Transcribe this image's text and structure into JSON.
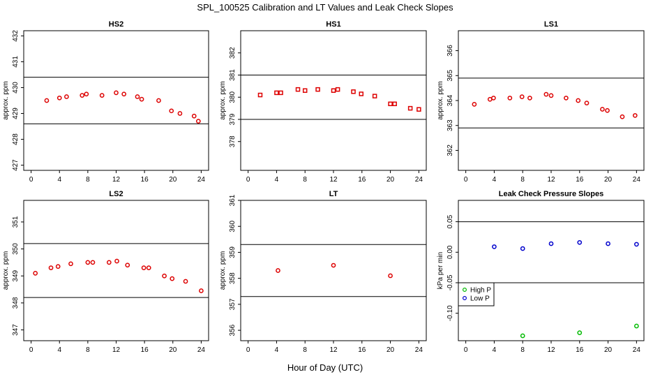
{
  "figure": {
    "title": "SPL_100525  Calibration and LT Values and Leak Check Slopes",
    "xlabel": "Hour of Day (UTC)"
  },
  "chart_data": [
    {
      "type": "scatter",
      "title": "HS2",
      "ylabel": "approx. ppm",
      "xlim": [
        0,
        24
      ],
      "ylim": [
        426.8,
        432.2
      ],
      "xticks": [
        0,
        4,
        8,
        12,
        16,
        20,
        24
      ],
      "yticks": [
        427,
        428,
        429,
        430,
        431,
        432
      ],
      "hlines": [
        430.4,
        428.6
      ],
      "color": "#dd0000",
      "marker": "circle",
      "series": [
        {
          "points": [
            [
              2.2,
              429.5
            ],
            [
              4.0,
              429.6
            ],
            [
              5.0,
              429.65
            ],
            [
              7.2,
              429.7
            ],
            [
              7.8,
              429.75
            ],
            [
              10.0,
              429.7
            ],
            [
              12.0,
              429.8
            ],
            [
              13.1,
              429.75
            ],
            [
              15.0,
              429.65
            ],
            [
              15.6,
              429.55
            ],
            [
              18.0,
              429.5
            ],
            [
              19.8,
              429.1
            ],
            [
              21.0,
              429.0
            ],
            [
              23.0,
              428.9
            ],
            [
              23.6,
              428.7
            ]
          ]
        }
      ]
    },
    {
      "type": "scatter",
      "title": "HS1",
      "ylabel": "approx. ppm",
      "xlim": [
        0,
        24
      ],
      "ylim": [
        376.7,
        383.0
      ],
      "xticks": [
        0,
        4,
        8,
        12,
        16,
        20,
        24
      ],
      "yticks": [
        378,
        379,
        380,
        381,
        382
      ],
      "hlines": [
        381.0,
        379.0
      ],
      "color": "#dd0000",
      "marker": "square",
      "series": [
        {
          "points": [
            [
              1.7,
              380.1
            ],
            [
              4.0,
              380.2
            ],
            [
              4.6,
              380.2
            ],
            [
              7.0,
              380.35
            ],
            [
              8.0,
              380.3
            ],
            [
              9.8,
              380.35
            ],
            [
              12.0,
              380.3
            ],
            [
              12.6,
              380.35
            ],
            [
              14.8,
              380.25
            ],
            [
              15.9,
              380.15
            ],
            [
              17.8,
              380.05
            ],
            [
              20.0,
              379.7
            ],
            [
              20.6,
              379.7
            ],
            [
              22.8,
              379.5
            ],
            [
              24.0,
              379.45
            ]
          ]
        }
      ]
    },
    {
      "type": "scatter",
      "title": "LS1",
      "ylabel": "approx. ppm",
      "xlim": [
        0,
        24
      ],
      "ylim": [
        361.2,
        366.8
      ],
      "xticks": [
        0,
        4,
        8,
        12,
        16,
        20,
        24
      ],
      "yticks": [
        362,
        363,
        364,
        365,
        366
      ],
      "hlines": [
        364.9,
        362.9
      ],
      "color": "#dd0000",
      "marker": "circle",
      "series": [
        {
          "points": [
            [
              1.2,
              363.85
            ],
            [
              3.4,
              364.05
            ],
            [
              3.9,
              364.1
            ],
            [
              6.2,
              364.1
            ],
            [
              7.9,
              364.15
            ],
            [
              9.0,
              364.1
            ],
            [
              11.3,
              364.25
            ],
            [
              12.0,
              364.2
            ],
            [
              14.1,
              364.1
            ],
            [
              15.8,
              364.0
            ],
            [
              17.0,
              363.9
            ],
            [
              19.2,
              363.65
            ],
            [
              19.9,
              363.6
            ],
            [
              22.0,
              363.35
            ],
            [
              23.8,
              363.4
            ]
          ]
        }
      ]
    },
    {
      "type": "scatter",
      "title": "LS2",
      "ylabel": "approx. ppm",
      "xlim": [
        0,
        24
      ],
      "ylim": [
        346.6,
        351.8
      ],
      "xticks": [
        0,
        4,
        8,
        12,
        16,
        20,
        24
      ],
      "yticks": [
        347,
        348,
        349,
        350,
        351
      ],
      "hlines": [
        350.2,
        348.2
      ],
      "color": "#dd0000",
      "marker": "circle",
      "series": [
        {
          "points": [
            [
              0.6,
              349.1
            ],
            [
              2.8,
              349.3
            ],
            [
              3.8,
              349.35
            ],
            [
              5.6,
              349.45
            ],
            [
              8.0,
              349.5
            ],
            [
              8.7,
              349.5
            ],
            [
              11.0,
              349.5
            ],
            [
              12.1,
              349.55
            ],
            [
              13.6,
              349.4
            ],
            [
              15.9,
              349.3
            ],
            [
              16.6,
              349.3
            ],
            [
              18.8,
              349.0
            ],
            [
              19.9,
              348.9
            ],
            [
              21.8,
              348.8
            ],
            [
              24.0,
              348.45
            ]
          ]
        }
      ]
    },
    {
      "type": "scatter",
      "title": "LT",
      "ylabel": "approx. ppm",
      "xlim": [
        0,
        24
      ],
      "ylim": [
        355.6,
        361.0
      ],
      "xticks": [
        0,
        4,
        8,
        12,
        16,
        20,
        24
      ],
      "yticks": [
        356,
        357,
        358,
        359,
        360,
        361
      ],
      "hlines": [
        359.3,
        357.3
      ],
      "color": "#dd0000",
      "marker": "circle",
      "series": [
        {
          "points": [
            [
              4.2,
              358.3
            ],
            [
              12.0,
              358.5
            ],
            [
              20.0,
              358.1
            ]
          ]
        }
      ]
    },
    {
      "type": "scatter",
      "title": "Leak Check Pressure Slopes",
      "ylabel": "kPa per min",
      "xlim": [
        0,
        24
      ],
      "ylim": [
        -0.145,
        0.085
      ],
      "xticks": [
        0,
        4,
        8,
        12,
        16,
        20,
        24
      ],
      "yticks": [
        -0.1,
        -0.05,
        0.0,
        0.05
      ],
      "ytick_labels": [
        "-0.10",
        "-0.05",
        "0.00",
        "0.05"
      ],
      "hlines": [
        0.05,
        -0.05
      ],
      "legend_position": "left",
      "series": [
        {
          "name": "High P",
          "color": "#00bb00",
          "marker": "circle",
          "points": [
            [
              8.0,
              -0.137
            ],
            [
              16.0,
              -0.132
            ],
            [
              24.0,
              -0.121
            ]
          ]
        },
        {
          "name": "Low P",
          "color": "#0000cc",
          "marker": "circle",
          "points": [
            [
              4.0,
              0.009
            ],
            [
              8.0,
              0.006
            ],
            [
              12.0,
              0.014
            ],
            [
              16.0,
              0.016
            ],
            [
              20.0,
              0.014
            ],
            [
              24.0,
              0.013
            ]
          ]
        }
      ]
    }
  ]
}
